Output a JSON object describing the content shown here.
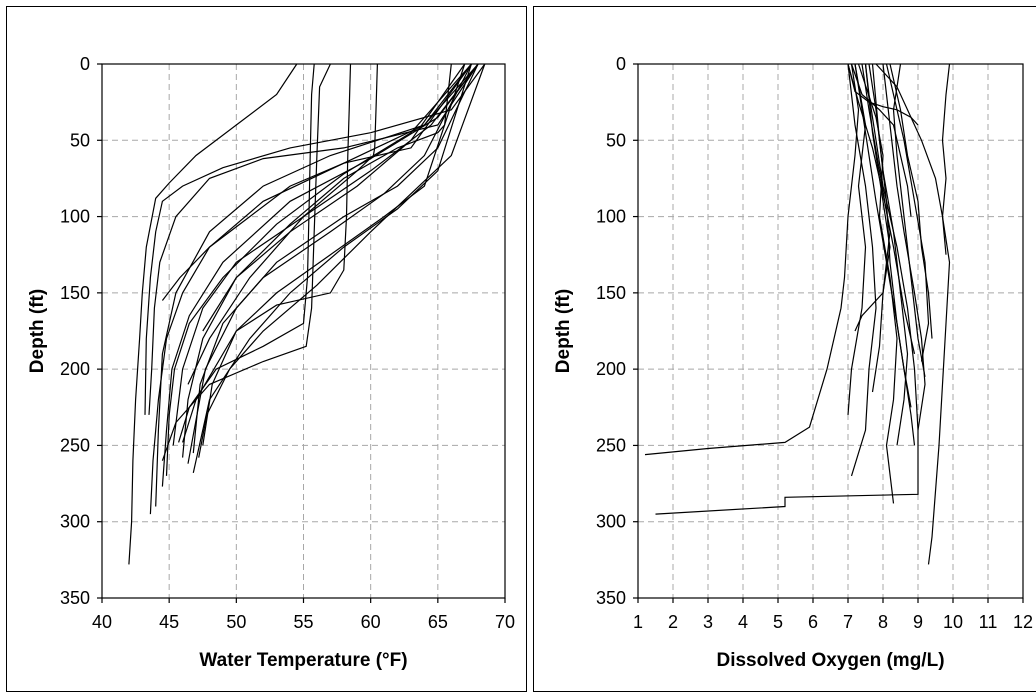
{
  "chart_data": [
    {
      "type": "line",
      "xlabel": "Water Temperature (°F)",
      "ylabel": "Depth (ft)",
      "xlim": [
        40,
        70
      ],
      "ylim": [
        350,
        0
      ],
      "y_inverted": true,
      "xticks": [
        "40",
        "45",
        "50",
        "55",
        "60",
        "65",
        "70"
      ],
      "yticks": [
        "0",
        "50",
        "100",
        "150",
        "200",
        "250",
        "300",
        "350"
      ],
      "grid": true,
      "series": [
        {
          "x": [
            54.5,
            53,
            50,
            47,
            45,
            44,
            43.3,
            43,
            42.8,
            42.5,
            42.3,
            42.2,
            42
          ],
          "y": [
            0,
            20,
            40,
            60,
            78,
            88,
            120,
            150,
            180,
            220,
            260,
            300,
            328
          ]
        },
        {
          "x": [
            68.5,
            66,
            60,
            54,
            49,
            46,
            44.5,
            44,
            43.6,
            43.3,
            43.2
          ],
          "y": [
            0,
            30,
            45,
            55,
            68,
            80,
            90,
            110,
            140,
            180,
            230
          ]
        },
        {
          "x": [
            68,
            65,
            58,
            52,
            48,
            45.5,
            44.3,
            43.9,
            43.7,
            43.5
          ],
          "y": [
            0,
            40,
            55,
            62,
            75,
            100,
            130,
            160,
            200,
            230
          ]
        },
        {
          "x": [
            68,
            64,
            57,
            52,
            48,
            45.5,
            44.5,
            44.2,
            44
          ],
          "y": [
            0,
            40,
            60,
            80,
            110,
            150,
            190,
            240,
            290
          ]
        },
        {
          "x": [
            67.5,
            64,
            58,
            52,
            48,
            46,
            44.8,
            44.2,
            43.8,
            43.6
          ],
          "y": [
            0,
            40,
            65,
            90,
            120,
            150,
            180,
            220,
            260,
            295
          ]
        },
        {
          "x": [
            68,
            65,
            60,
            54,
            49,
            46.5,
            45.2,
            44.8,
            44.5
          ],
          "y": [
            0,
            35,
            62,
            90,
            130,
            165,
            200,
            240,
            277
          ]
        },
        {
          "x": [
            67.5,
            63,
            58,
            53,
            49,
            46.5,
            45.4,
            45,
            44.8
          ],
          "y": [
            0,
            45,
            72,
            105,
            140,
            170,
            200,
            230,
            270
          ]
        },
        {
          "x": [
            68,
            64.5,
            60,
            55,
            50,
            47.5,
            46,
            45.3
          ],
          "y": [
            0,
            40,
            70,
            100,
            130,
            160,
            200,
            250
          ]
        },
        {
          "x": [
            67,
            63,
            59,
            54,
            50,
            47.5,
            46.4,
            46
          ],
          "y": [
            0,
            50,
            80,
            110,
            140,
            180,
            220,
            258
          ]
        },
        {
          "x": [
            67.5,
            64,
            61,
            57,
            52,
            49,
            47.3,
            46.8
          ],
          "y": [
            0,
            60,
            85,
            110,
            140,
            170,
            210,
            255
          ]
        },
        {
          "x": [
            68,
            65,
            62,
            58,
            53,
            50,
            47.7,
            46.4
          ],
          "y": [
            0,
            55,
            80,
            100,
            130,
            160,
            200,
            262
          ]
        },
        {
          "x": [
            67.5,
            65,
            62,
            58,
            54,
            51,
            48,
            46.8
          ],
          "y": [
            0,
            70,
            95,
            120,
            150,
            180,
            220,
            268
          ]
        },
        {
          "x": [
            68.5,
            66,
            63,
            60,
            56,
            52,
            49.5,
            47.8,
            47.2
          ],
          "y": [
            0,
            60,
            85,
            110,
            145,
            175,
            200,
            230,
            258
          ]
        },
        {
          "x": [
            67,
            64,
            61,
            57,
            53,
            50,
            48.2,
            47.5
          ],
          "y": [
            0,
            80,
            100,
            125,
            150,
            175,
            210,
            250
          ]
        },
        {
          "x": [
            58.5,
            58.4,
            58.3,
            58.2,
            58,
            57,
            53,
            50,
            47,
            46
          ],
          "y": [
            0,
            30,
            60,
            100,
            135,
            150,
            158,
            175,
            220,
            248
          ]
        },
        {
          "x": [
            55.8,
            55.6,
            55.5,
            55.4,
            55.3,
            55,
            52,
            48.5,
            46.5,
            45.7
          ],
          "y": [
            0,
            20,
            60,
            100,
            140,
            170,
            185,
            200,
            225,
            248
          ]
        },
        {
          "x": [
            57,
            56.2,
            56,
            55.8,
            55.6,
            55.2,
            52,
            48,
            45.5,
            44.5
          ],
          "y": [
            0,
            15,
            60,
            110,
            160,
            185,
            195,
            210,
            235,
            260
          ]
        },
        {
          "x": [
            60.5,
            60.4,
            60.3,
            60.2,
            59,
            55,
            51,
            48,
            46.4
          ],
          "y": [
            0,
            30,
            55,
            60,
            70,
            100,
            140,
            180,
            210
          ]
        },
        {
          "x": [
            66,
            65.5,
            65,
            62,
            58,
            54,
            50,
            47.5
          ],
          "y": [
            0,
            40,
            45,
            55,
            75,
            105,
            140,
            175
          ]
        },
        {
          "x": [
            67.5,
            63,
            58,
            54,
            51,
            48,
            45.8,
            44.5
          ],
          "y": [
            0,
            55,
            65,
            80,
            100,
            120,
            140,
            155
          ]
        }
      ]
    },
    {
      "type": "line",
      "xlabel": "Dissolved Oxygen (mg/L)",
      "ylabel": "Depth (ft)",
      "xlim": [
        1,
        12
      ],
      "ylim": [
        350,
        0
      ],
      "y_inverted": true,
      "xticks": [
        "1",
        "2",
        "3",
        "4",
        "5",
        "6",
        "7",
        "8",
        "9",
        "10",
        "11",
        "12"
      ],
      "yticks": [
        "0",
        "50",
        "100",
        "150",
        "200",
        "250",
        "300",
        "350"
      ],
      "grid": true,
      "series": [
        {
          "x": [
            7.1,
            7.3,
            7.2,
            7.0,
            6.9,
            6.8,
            6.4,
            5.9,
            5.2,
            3.0,
            1.2
          ],
          "y": [
            0,
            30,
            60,
            100,
            140,
            160,
            200,
            238,
            248,
            252,
            256
          ]
        },
        {
          "x": [
            7.5,
            7.6,
            7.8,
            8.0,
            8.4,
            8.7,
            8.9,
            9.0,
            9.0,
            5.2,
            5.2,
            1.5
          ],
          "y": [
            0,
            20,
            50,
            80,
            120,
            160,
            200,
            240,
            282,
            284,
            290,
            295
          ]
        },
        {
          "x": [
            9.9,
            9.8,
            9.7,
            9.8,
            9.7,
            9.9,
            9.8,
            9.7,
            9.6,
            9.5,
            9.4,
            9.3
          ],
          "y": [
            0,
            20,
            50,
            75,
            100,
            130,
            170,
            210,
            250,
            280,
            310,
            328
          ]
        },
        {
          "x": [
            7.3,
            7.8,
            8.0,
            7.9,
            8.2,
            8.4,
            8.3,
            8.1,
            8.3
          ],
          "y": [
            0,
            35,
            60,
            100,
            140,
            180,
            220,
            250,
            288
          ]
        },
        {
          "x": [
            7.2,
            7.4,
            7.6,
            7.8,
            8.1,
            8.4,
            8.6,
            8.8,
            8.9
          ],
          "y": [
            0,
            30,
            60,
            90,
            130,
            170,
            200,
            230,
            250
          ]
        },
        {
          "x": [
            7.0,
            7.2,
            7.5,
            7.7,
            7.8,
            7.6,
            7.5,
            7.1
          ],
          "y": [
            0,
            40,
            80,
            120,
            160,
            200,
            240,
            270
          ]
        },
        {
          "x": [
            7.6,
            7.8,
            8.0,
            8.3,
            8.5,
            8.7,
            8.6,
            8.4
          ],
          "y": [
            0,
            30,
            70,
            110,
            150,
            190,
            220,
            250
          ]
        },
        {
          "x": [
            8.0,
            8.2,
            8.4,
            8.6,
            8.9,
            9.1,
            9.2,
            9.0
          ],
          "y": [
            0,
            40,
            80,
            110,
            150,
            180,
            210,
            240
          ]
        },
        {
          "x": [
            7.2,
            7.5,
            7.3,
            7.5,
            7.4,
            7.1,
            7.0
          ],
          "y": [
            0,
            40,
            80,
            120,
            160,
            200,
            230
          ]
        },
        {
          "x": [
            8.5,
            8.3,
            8.4,
            8.6,
            8.8,
            9.0,
            9.2
          ],
          "y": [
            0,
            30,
            60,
            100,
            140,
            180,
            205
          ]
        },
        {
          "x": [
            7.7,
            7.9,
            8.1,
            8.2,
            8.4,
            8.6,
            8.8
          ],
          "y": [
            0,
            50,
            90,
            130,
            170,
            200,
            225
          ]
        },
        {
          "x": [
            8.1,
            8.3,
            8.6,
            8.9,
            9.2,
            9.3,
            9.1
          ],
          "y": [
            0,
            20,
            50,
            90,
            130,
            170,
            195
          ]
        },
        {
          "x": [
            7.4,
            7.6,
            7.9,
            8.2,
            8.0,
            7.9,
            7.7
          ],
          "y": [
            0,
            30,
            70,
            110,
            150,
            185,
            215
          ]
        },
        {
          "x": [
            7.0,
            7.3,
            7.7,
            8.0,
            8.3,
            8.6,
            8.9
          ],
          "y": [
            0,
            25,
            55,
            85,
            120,
            160,
            190
          ]
        },
        {
          "x": [
            8.2,
            8.5,
            8.7,
            9.0,
            9.1,
            9.3,
            9.4
          ],
          "y": [
            0,
            30,
            60,
            90,
            120,
            150,
            180
          ]
        },
        {
          "x": [
            7.8,
            8.4,
            8.7,
            9.1,
            9.5,
            9.7,
            9.8
          ],
          "y": [
            0,
            15,
            30,
            50,
            75,
            100,
            125
          ]
        },
        {
          "x": [
            7.0,
            7.2,
            7.6,
            8.0,
            8.4,
            8.8,
            9.0
          ],
          "y": [
            0,
            18,
            25,
            28,
            30,
            35,
            40
          ]
        },
        {
          "x": [
            7.1,
            7.4,
            7.9,
            8.3,
            8.5,
            8.7,
            8.8
          ],
          "y": [
            0,
            20,
            30,
            40,
            60,
            80,
            100
          ]
        },
        {
          "x": [
            7.5,
            7.7,
            8.0,
            8.2,
            8.0,
            7.4,
            7.2
          ],
          "y": [
            0,
            45,
            90,
            120,
            150,
            165,
            175
          ]
        }
      ]
    }
  ]
}
